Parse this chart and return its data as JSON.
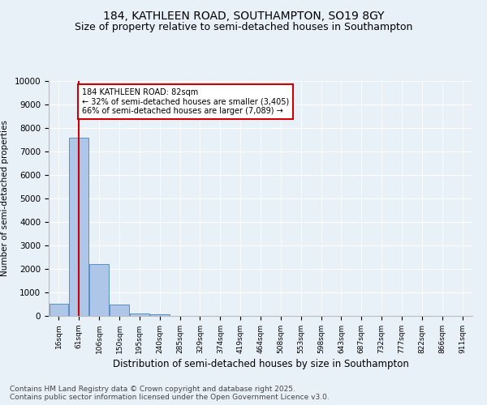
{
  "title_line1": "184, KATHLEEN ROAD, SOUTHAMPTON, SO19 8GY",
  "title_line2": "Size of property relative to semi-detached houses in Southampton",
  "xlabel": "Distribution of semi-detached houses by size in Southampton",
  "ylabel": "Number of semi-detached properties",
  "categories": [
    "16sqm",
    "61sqm",
    "106sqm",
    "150sqm",
    "195sqm",
    "240sqm",
    "285sqm",
    "329sqm",
    "374sqm",
    "419sqm",
    "464sqm",
    "508sqm",
    "553sqm",
    "598sqm",
    "643sqm",
    "687sqm",
    "732sqm",
    "777sqm",
    "822sqm",
    "866sqm",
    "911sqm"
  ],
  "values": [
    520,
    7600,
    2200,
    500,
    100,
    55,
    0,
    0,
    0,
    0,
    0,
    0,
    0,
    0,
    0,
    0,
    0,
    0,
    0,
    0,
    0
  ],
  "bar_color": "#aec6e8",
  "bar_edge_color": "#5a8fc2",
  "red_line_x": 1.0,
  "red_line_color": "#cc0000",
  "annotation_title": "184 KATHLEEN ROAD: 82sqm",
  "annotation_line1": "← 32% of semi-detached houses are smaller (3,405)",
  "annotation_line2": "66% of semi-detached houses are larger (7,089) →",
  "annotation_box_color": "#ffffff",
  "annotation_box_edge": "#cc0000",
  "ylim": [
    0,
    10000
  ],
  "yticks": [
    0,
    1000,
    2000,
    3000,
    4000,
    5000,
    6000,
    7000,
    8000,
    9000,
    10000
  ],
  "footnote": "Contains HM Land Registry data © Crown copyright and database right 2025.\nContains public sector information licensed under the Open Government Licence v3.0.",
  "bg_color": "#e8f0f8",
  "plot_bg_color": "#e8f0f8",
  "title_fontsize": 10,
  "subtitle_fontsize": 9,
  "footnote_fontsize": 6.5
}
